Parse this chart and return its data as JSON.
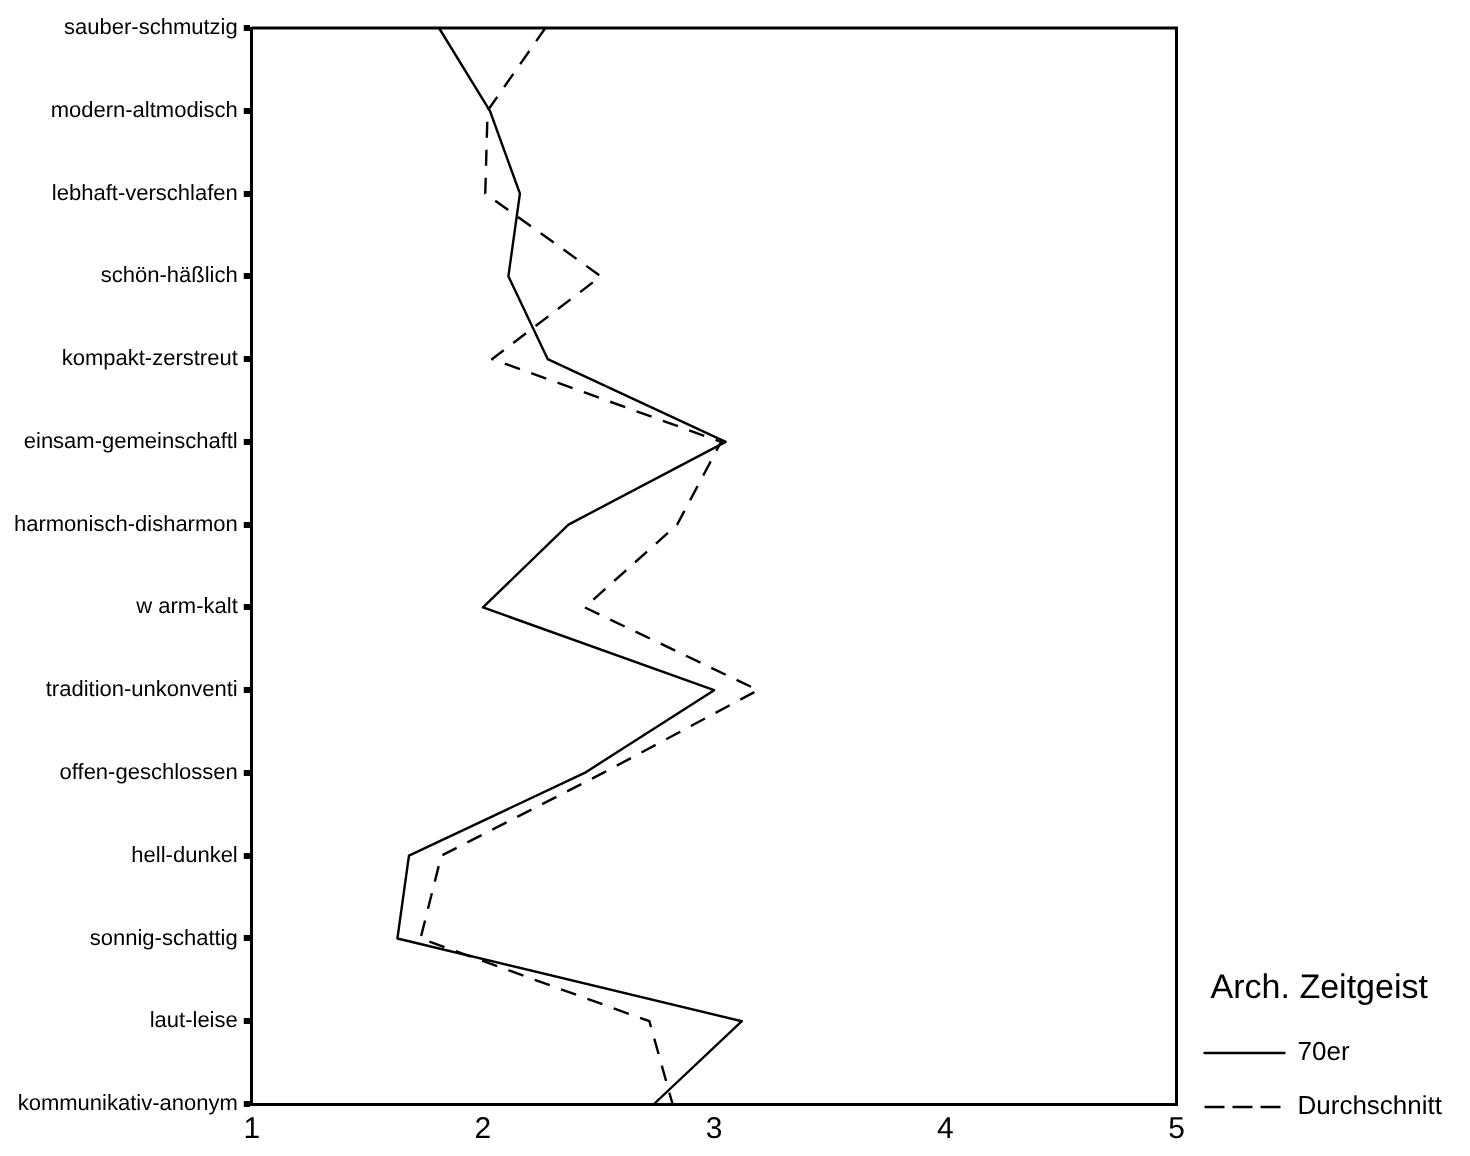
{
  "chart_data": {
    "type": "line",
    "orientation": "horizontal",
    "legend_title": "Arch. Zeitgeist",
    "categories": [
      "sauber-schmutzig",
      "modern-altmodisch",
      "lebhaft-verschlafen",
      "schön-häßlich",
      "kompakt-zerstreut",
      "einsam-gemeinschaftl",
      "harmonisch-disharmon",
      "w arm-kalt",
      "tradition-unkonventi",
      "offen-geschlossen",
      "hell-dunkel",
      "sonnig-schattig",
      "laut-leise",
      "kommunikativ-anonym"
    ],
    "series": [
      {
        "name": "70er",
        "color": "#000000",
        "line_style": "solid",
        "values": [
          1.81,
          2.03,
          2.16,
          2.11,
          2.28,
          3.05,
          2.37,
          2.0,
          3.0,
          2.44,
          1.68,
          1.63,
          3.12,
          2.74
        ]
      },
      {
        "name": "Durchschnitt",
        "color": "#000000",
        "line_style": "dashed",
        "values": [
          2.27,
          2.02,
          2.01,
          2.51,
          2.04,
          3.03,
          2.84,
          2.44,
          3.19,
          2.52,
          1.82,
          1.73,
          2.72,
          2.82
        ]
      }
    ],
    "xlim": [
      1,
      5
    ],
    "xticks": [
      1,
      2,
      3,
      4,
      5
    ],
    "grid": false,
    "marker": "none",
    "legend": "bottom right"
  }
}
